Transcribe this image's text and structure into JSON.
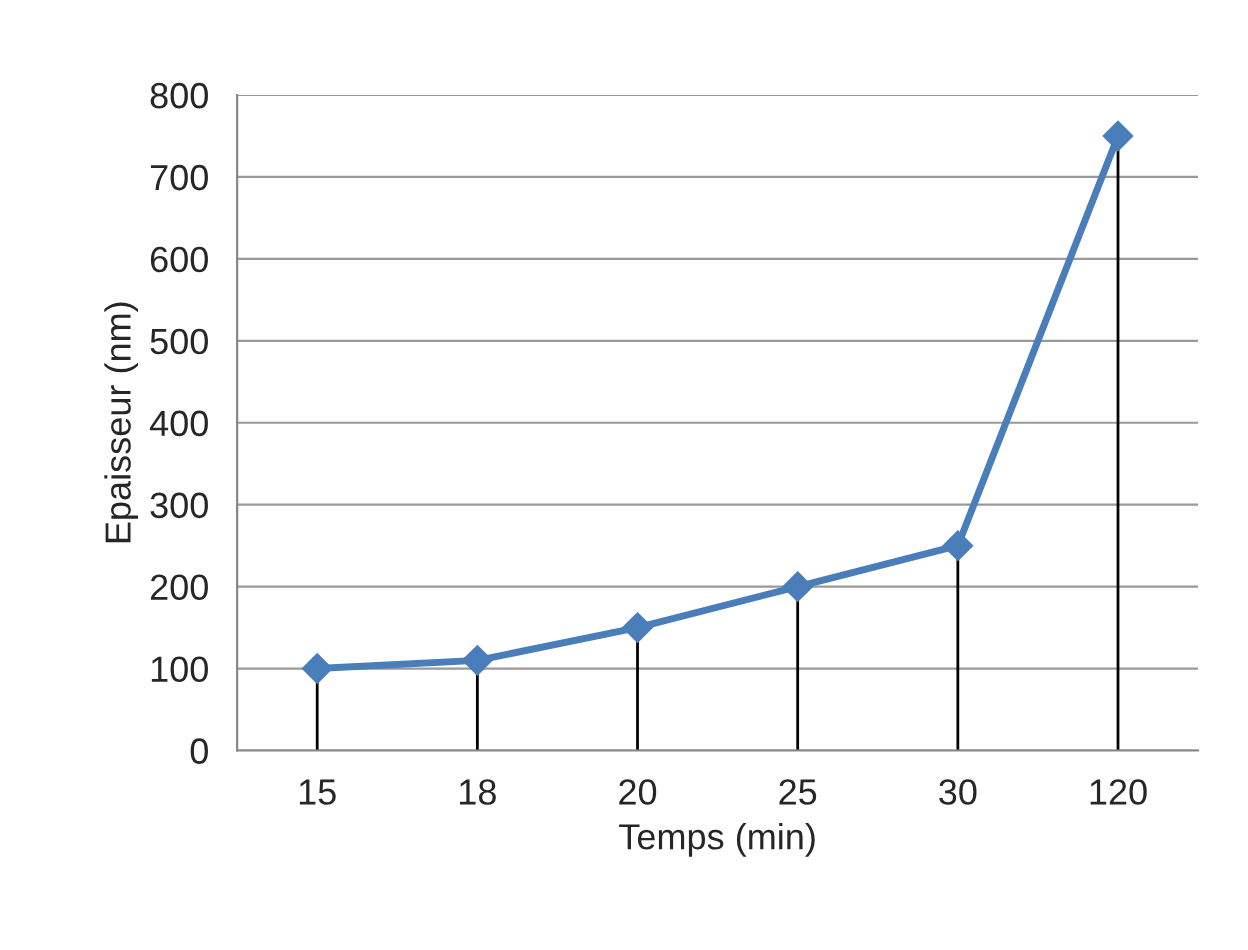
{
  "chart_data": {
    "type": "line",
    "xlabel": "Temps (min)",
    "ylabel": "Epaisseur (nm)",
    "categories": [
      "15",
      "18",
      "20",
      "25",
      "30",
      "120"
    ],
    "series": [
      {
        "color": "#4a7ebb",
        "values": [
          100,
          110,
          150,
          200,
          250,
          750
        ],
        "errors": [
          [
            0,
            100
          ],
          [
            0,
            110
          ],
          [
            0,
            150
          ],
          [
            0,
            200
          ],
          [
            0,
            250
          ],
          [
            0,
            750
          ]
        ]
      }
    ],
    "ylim": [
      0,
      800
    ],
    "yticks": [
      0,
      100,
      200,
      300,
      400,
      500,
      600,
      700,
      800
    ],
    "grid": "y",
    "marker": "diamond",
    "line_style": "solid",
    "legend": false
  }
}
